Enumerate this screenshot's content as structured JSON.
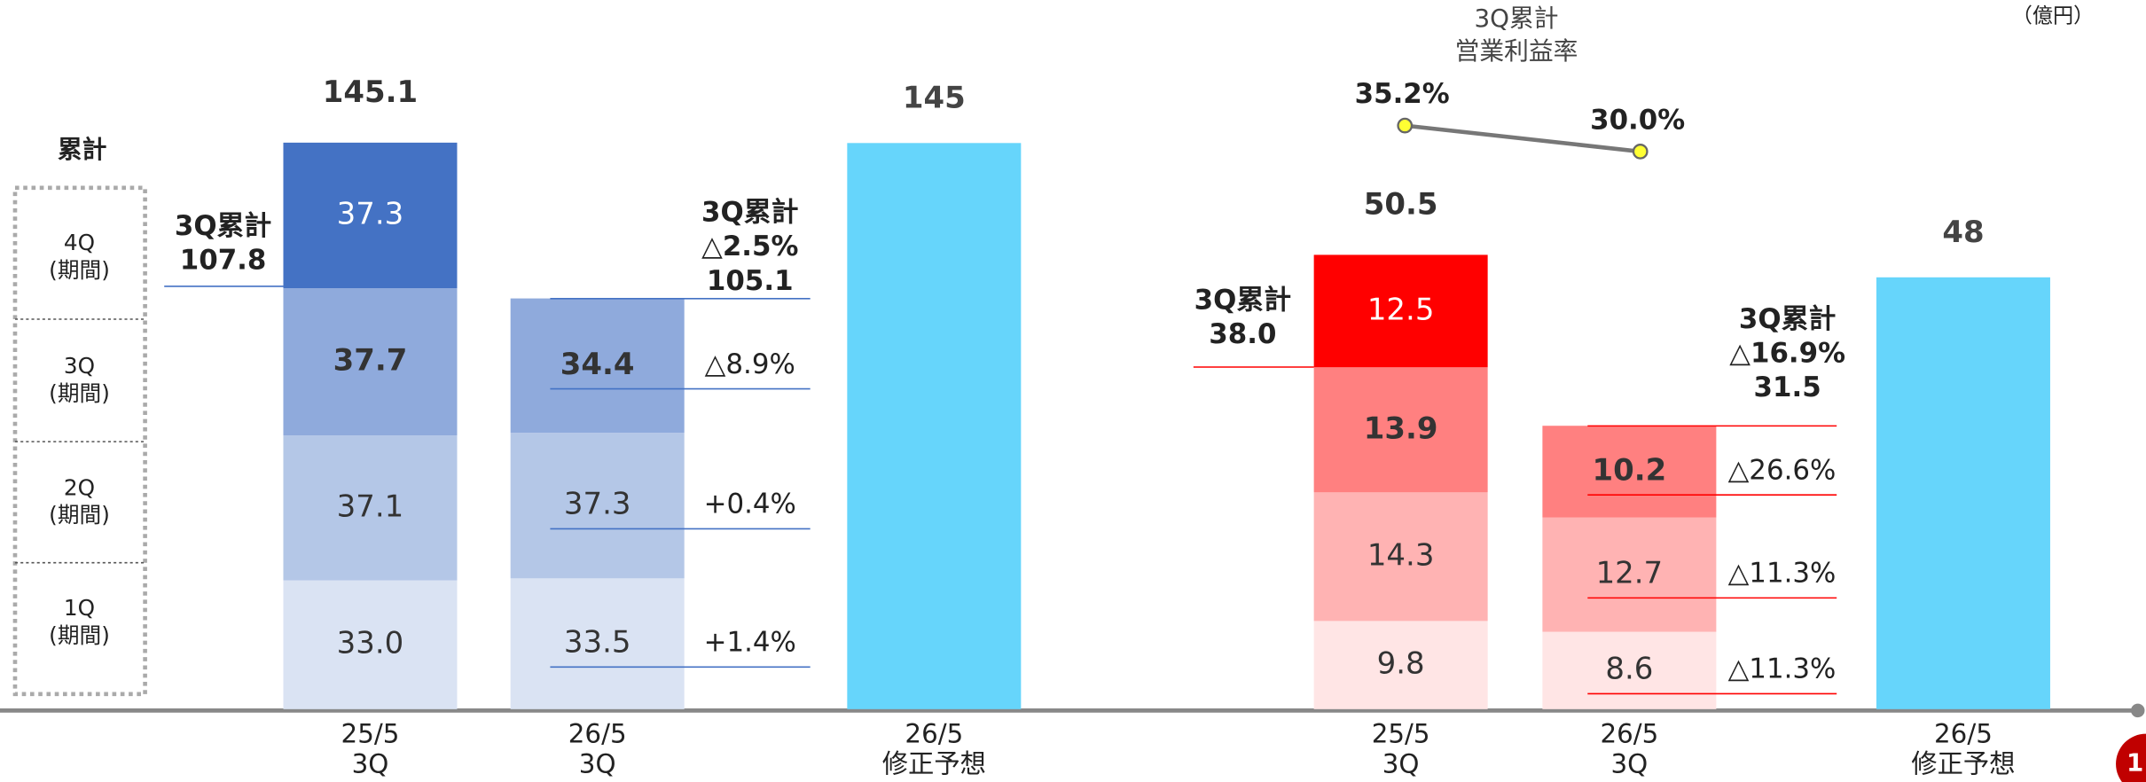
{
  "unit": "（億円）",
  "page": "1",
  "chart_data": [
    {
      "type": "stacked_bar",
      "legend_title": "累計",
      "categories": [
        [
          "25/5",
          "3Q"
        ],
        [
          "26/5",
          "3Q"
        ],
        [
          "26/5",
          "修正予想"
        ]
      ],
      "series": [
        {
          "name": [
            "1Q",
            "(期間)"
          ],
          "color": "#dae3f3",
          "values": [
            33.0,
            33.5,
            null
          ],
          "value_labels": [
            "33.0",
            "33.5",
            null
          ]
        },
        {
          "name": [
            "2Q",
            "(期間)"
          ],
          "color": "#b4c7e7",
          "values": [
            37.1,
            37.3,
            null
          ]
        },
        {
          "name": [
            "3Q",
            "(期間)"
          ],
          "color": "#8faadc",
          "values": [
            37.7,
            34.4,
            null
          ]
        },
        {
          "name": [
            "4Q",
            "(期間)"
          ],
          "color": "#4472c4",
          "values": [
            37.3,
            null,
            null
          ]
        }
      ],
      "forecast": {
        "color": "#66d5fb",
        "values": [
          null,
          null,
          145
        ]
      },
      "totals": [
        145.1,
        null,
        null
      ],
      "changes": [
        "+1.4%",
        "+0.4%",
        "△8.9%",
        null
      ],
      "annotations": [
        {
          "lines": [
            "3Q累計",
            "107.8"
          ]
        },
        {
          "lines": [
            "3Q累計",
            "△2.5%",
            "105.1"
          ]
        }
      ]
    },
    {
      "type": "stacked_bar",
      "categories": [
        [
          "25/5",
          "3Q"
        ],
        [
          "26/5",
          "3Q"
        ],
        [
          "26/5",
          "修正予想"
        ]
      ],
      "series": [
        {
          "name": [
            "1Q",
            "(期間)"
          ],
          "color": "#ffe5e5",
          "values": [
            9.8,
            8.6,
            null
          ]
        },
        {
          "name": [
            "2Q",
            "(期間)"
          ],
          "color": "#ffb3b3",
          "values": [
            14.3,
            12.7,
            null
          ]
        },
        {
          "name": [
            "3Q",
            "(期間)"
          ],
          "color": "#ff8080",
          "values": [
            13.9,
            10.2,
            null
          ]
        },
        {
          "name": [
            "4Q",
            "(期間)"
          ],
          "color": "#ff0000",
          "values": [
            12.5,
            null,
            null
          ]
        }
      ],
      "forecast": {
        "color": "#66d5fb",
        "values": [
          null,
          null,
          48
        ]
      },
      "totals": [
        50.5,
        null,
        null
      ],
      "changes": [
        "△11.3%",
        "△11.3%",
        "△26.6%",
        null
      ],
      "annotations": [
        {
          "lines": [
            "3Q累計",
            "38.0"
          ]
        },
        {
          "lines": [
            "3Q累計",
            "△16.9%",
            "31.5"
          ]
        }
      ],
      "margin": {
        "title": [
          "3Q累計",
          "営業利益率"
        ],
        "values": [
          35.2,
          30.0
        ],
        "value_labels": [
          "35.2%",
          "30.0%"
        ],
        "color": "#ffff33"
      }
    }
  ]
}
